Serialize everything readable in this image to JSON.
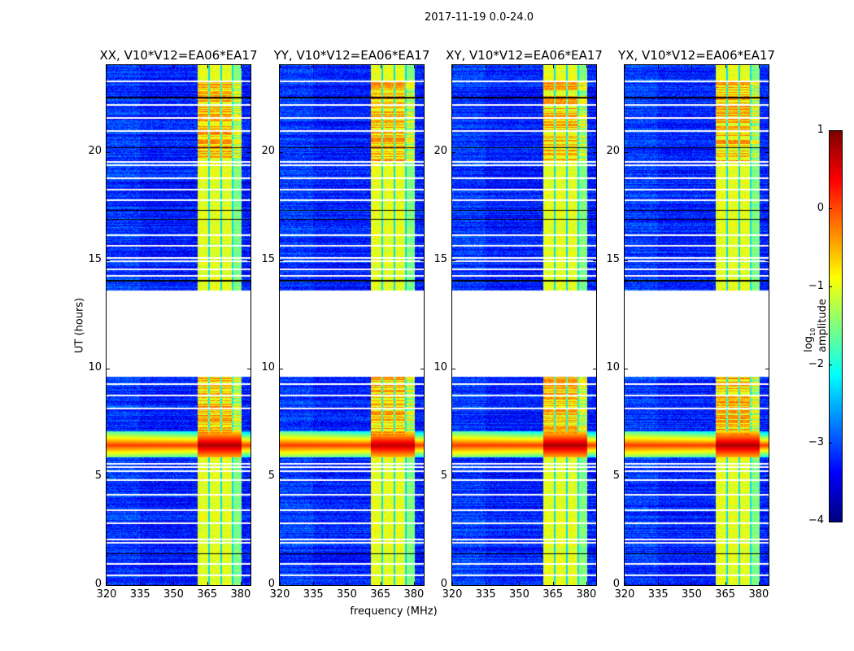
{
  "chart_data": {
    "type": "heatmap",
    "title": "2017-11-19 0.0-24.0",
    "xlabel": "frequency (MHz)",
    "ylabel": "UT (hours)",
    "xlim": [
      320,
      384.4
    ],
    "ylim": [
      0,
      24
    ],
    "xticks": [
      "320",
      "335",
      "350",
      "365",
      "380"
    ],
    "xtick_values": [
      320,
      335,
      350,
      365,
      380
    ],
    "yticks": [
      "0",
      "5",
      "10",
      "15",
      "20"
    ],
    "ytick_values": [
      0,
      5,
      10,
      15,
      20
    ],
    "panels": [
      {
        "title": "XX, V10*V12=EA06*EA17",
        "band": [
          360.7,
          380.4
        ],
        "event_level": 0.8
      },
      {
        "title": "YY, V10*V12=EA06*EA17",
        "band": [
          360.7,
          380.4
        ],
        "event_level": 0.7
      },
      {
        "title": "XY, V10*V12=EA06*EA17",
        "band": [
          360.7,
          380.4
        ],
        "event_level": 0.8
      },
      {
        "title": "YX, V10*V12=EA06*EA17",
        "band": [
          360.7,
          380.4
        ],
        "event_level": 0.8
      }
    ],
    "data_gap_hours": [
      9.6,
      13.6
    ],
    "rfi_event_hours": [
      5.9,
      7.1
    ],
    "band_subchannel_gaps_mhz": [
      366.0,
      371.3,
      376.5
    ],
    "flagged_rows_hours": [
      0.5,
      1.0,
      2.0,
      2.15,
      2.9,
      3.5,
      4.2,
      4.9,
      5.3,
      5.5,
      5.65,
      8.2,
      8.8,
      9.3,
      14.3,
      14.6,
      15.0,
      15.15,
      15.7,
      16.2,
      17.8,
      18.3,
      18.8,
      19.4,
      19.55,
      21.0,
      21.6,
      22.2,
      23.3
    ],
    "black_rows_hours": [
      1.45,
      14.05,
      14.1,
      16.9,
      17.3,
      20.2,
      22.5,
      22.55
    ],
    "colorbar": {
      "label": "log10 amplitude",
      "label_main": "log",
      "label_sub": "10",
      "label_rest": " amplitude",
      "range": [
        -4,
        1
      ],
      "ticks": [
        "1",
        "0",
        "−1",
        "−2",
        "−3",
        "−4"
      ],
      "tick_values": [
        1,
        0,
        -1,
        -2,
        -3,
        -4
      ],
      "colormap": "jet"
    }
  }
}
